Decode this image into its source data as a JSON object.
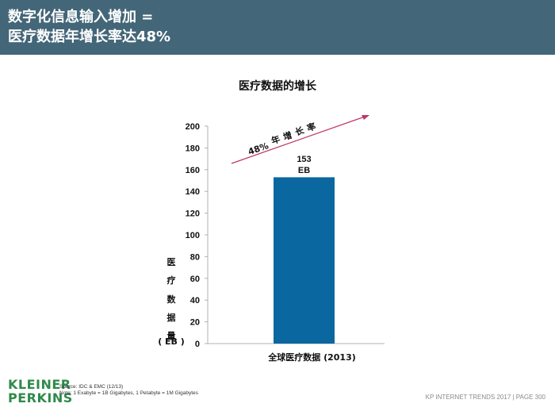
{
  "header": {
    "line1": "数字化信息输入增加 =",
    "line2": "医疗数据年增长率达48%"
  },
  "chart_data": {
    "type": "bar",
    "title": "医疗数据的增长",
    "categories": [
      "全球医疗数据 (2013)"
    ],
    "values": [
      153
    ],
    "data_labels": [
      "153",
      "EB"
    ],
    "ylabel_chars": [
      "医",
      "疗",
      "数",
      "据",
      "量",
      "( EB )"
    ],
    "ylim": [
      0,
      200
    ],
    "yticks": [
      0,
      20,
      40,
      60,
      80,
      100,
      120,
      140,
      160,
      180,
      200
    ],
    "grid": false,
    "bar_color": "#0b67a0",
    "annotation": {
      "text_chars": [
        "48%",
        "年",
        "增",
        "长",
        "率"
      ],
      "arrow_color": "#c0356b"
    }
  },
  "footer": {
    "logo_line1": "KLEINER",
    "logo_line2": "PERKINS",
    "source_line1": "Source: IDC & EMC (12/13)",
    "source_line2": "Note: 1 Exabyte = 1B Gigabytes, 1 Petabyte = 1M Gigabytes",
    "page_label": "KP INTERNET TRENDS 2017   |   PAGE 300"
  }
}
